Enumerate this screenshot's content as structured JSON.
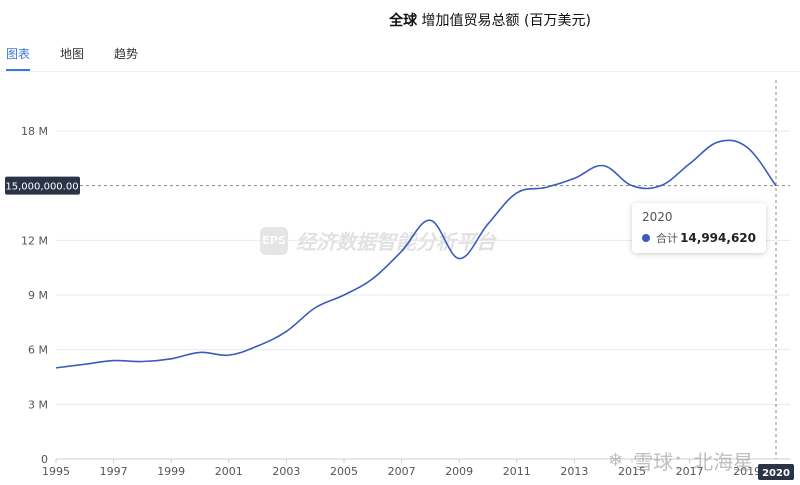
{
  "header": {
    "title_bold": "全球",
    "title_rest": "增加值贸易总额 (百万美元)"
  },
  "tabs": [
    {
      "label": "图表",
      "active": true
    },
    {
      "label": "地图",
      "active": false
    },
    {
      "label": "趋势",
      "active": false
    }
  ],
  "chart_data": {
    "type": "line",
    "title": "全球 增加值贸易总额 (百万美元)",
    "series": [
      {
        "name": "合计",
        "color": "#3b5bbd",
        "x": [
          1995,
          1996,
          1997,
          1998,
          1999,
          2000,
          2001,
          2002,
          2003,
          2004,
          2005,
          2006,
          2007,
          2008,
          2009,
          2010,
          2011,
          2012,
          2013,
          2014,
          2015,
          2016,
          2017,
          2018,
          2019,
          2020
        ],
        "values": [
          5.0,
          5.2,
          5.4,
          5.35,
          5.5,
          5.85,
          5.7,
          6.2,
          7.0,
          8.3,
          9.0,
          9.9,
          11.4,
          13.1,
          11.0,
          12.9,
          14.6,
          14.9,
          15.4,
          16.1,
          15.0,
          15.0,
          16.2,
          17.4,
          17.1,
          14.99462
        ]
      }
    ],
    "y_ticks": [
      "0",
      "3 M",
      "6 M",
      "9 M",
      "12 M",
      "18 M"
    ],
    "y_tick_values": [
      0,
      3,
      6,
      9,
      12,
      18
    ],
    "x_ticks": [
      "1995",
      "1997",
      "1999",
      "2001",
      "2003",
      "2005",
      "2007",
      "2009",
      "2011",
      "2013",
      "2015",
      "2017",
      "2019"
    ],
    "x_tick_values": [
      1995,
      1997,
      1999,
      2001,
      2003,
      2005,
      2007,
      2009,
      2011,
      2013,
      2015,
      2017,
      2019
    ],
    "ylim": [
      0,
      18
    ],
    "xlim": [
      1995,
      2020
    ],
    "grid": true,
    "crosshair": {
      "y_label": "15,000,000.00",
      "y_value": 15.0,
      "x_label": "2020",
      "x_value": 2020
    }
  },
  "tooltip": {
    "year": "2020",
    "series_name": "合计",
    "value": "14,994,620"
  },
  "watermark": {
    "text": "经济数据智能分析平台",
    "logo_text": "EPS"
  },
  "source_mark": {
    "icon": "❄",
    "text": "雪球：北海星"
  }
}
